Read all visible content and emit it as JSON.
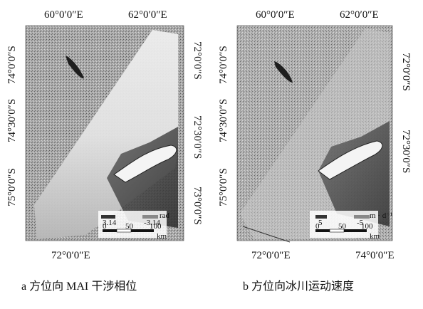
{
  "panel_a": {
    "top_labels": [
      "60°0′0″E",
      "62°0′0″E"
    ],
    "bottom_labels": [
      "72°0′0″E"
    ],
    "left_labels": [
      "74°0′0″S",
      "74°30′0″S",
      "75°0′0″S"
    ],
    "right_labels": [
      "72°0′0″S",
      "72°30′0″S",
      "73°0′0″S"
    ],
    "legend": {
      "min": "3.14",
      "max": "-3.14",
      "unit": "rad"
    },
    "scale": {
      "ticks": [
        "0",
        "50",
        "100"
      ],
      "unit": "km"
    },
    "caption": "a 方位向 MAI 干涉相位"
  },
  "panel_b": {
    "top_labels": [
      "60°0′0″E",
      "62°0′0″E"
    ],
    "bottom_labels": [
      "72°0′0″E",
      "74°0′0″E"
    ],
    "left_labels": [
      "74°0′0″S",
      "74°30′0″S",
      "75°0′0″S"
    ],
    "right_labels": [
      "72°0′0″S",
      "72°30′0″S"
    ],
    "legend": {
      "min": "5",
      "max": "-5",
      "unit": "m · d⁻¹"
    },
    "scale": {
      "ticks": [
        "0",
        "50",
        "100"
      ],
      "unit": "km"
    },
    "caption": "b 方位向冰川运动速度"
  }
}
